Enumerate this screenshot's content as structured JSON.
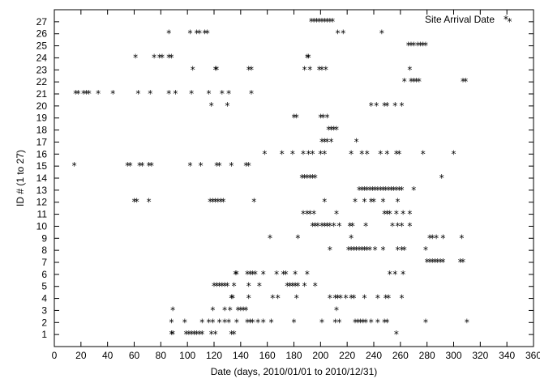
{
  "chart_data": {
    "type": "scatter",
    "xlabel": "Date (days, 2010/01/01 to 2010/12/31)",
    "ylabel": "ID # (1 to 27)",
    "xlim": [
      0,
      360
    ],
    "ylim": [
      0,
      28
    ],
    "xticks": [
      0,
      20,
      40,
      60,
      80,
      100,
      120,
      140,
      160,
      180,
      200,
      220,
      240,
      260,
      280,
      300,
      320,
      340,
      360
    ],
    "yticks": [
      1,
      2,
      3,
      4,
      5,
      6,
      7,
      8,
      9,
      10,
      11,
      12,
      13,
      14,
      15,
      16,
      17,
      18,
      19,
      20,
      21,
      22,
      23,
      24,
      25,
      26,
      27
    ],
    "grid": false,
    "legend_position": "top-right",
    "marker": "*",
    "series": [
      {
        "name": "Site Arrival Date",
        "color": "#000000",
        "points": [
          [
            88,
            1
          ],
          [
            89,
            1
          ],
          [
            99,
            1
          ],
          [
            101,
            1
          ],
          [
            103,
            1
          ],
          [
            105,
            1
          ],
          [
            107,
            1
          ],
          [
            109,
            1
          ],
          [
            111,
            1
          ],
          [
            118,
            1
          ],
          [
            121,
            1
          ],
          [
            133,
            1
          ],
          [
            135,
            1
          ],
          [
            257,
            1
          ],
          [
            88,
            2
          ],
          [
            98,
            2
          ],
          [
            111,
            2
          ],
          [
            116,
            2
          ],
          [
            119,
            2
          ],
          [
            124,
            2
          ],
          [
            128,
            2
          ],
          [
            131,
            2
          ],
          [
            137,
            2
          ],
          [
            145,
            2
          ],
          [
            147,
            2
          ],
          [
            149,
            2
          ],
          [
            153,
            2
          ],
          [
            157,
            2
          ],
          [
            163,
            2
          ],
          [
            180,
            2
          ],
          [
            201,
            2
          ],
          [
            211,
            2
          ],
          [
            214,
            2
          ],
          [
            226,
            2
          ],
          [
            228,
            2
          ],
          [
            230,
            2
          ],
          [
            232,
            2
          ],
          [
            234,
            2
          ],
          [
            238,
            2
          ],
          [
            243,
            2
          ],
          [
            248,
            2
          ],
          [
            250,
            2
          ],
          [
            279,
            2
          ],
          [
            310,
            2
          ],
          [
            89,
            3
          ],
          [
            119,
            3
          ],
          [
            128,
            3
          ],
          [
            132,
            3
          ],
          [
            138,
            3
          ],
          [
            140,
            3
          ],
          [
            142,
            3
          ],
          [
            144,
            3
          ],
          [
            212,
            3
          ],
          [
            133,
            4
          ],
          [
            134,
            4
          ],
          [
            146,
            4
          ],
          [
            164,
            4
          ],
          [
            168,
            4
          ],
          [
            182,
            4
          ],
          [
            207,
            4
          ],
          [
            211,
            4
          ],
          [
            213,
            4
          ],
          [
            215,
            4
          ],
          [
            219,
            4
          ],
          [
            223,
            4
          ],
          [
            225,
            4
          ],
          [
            233,
            4
          ],
          [
            243,
            4
          ],
          [
            249,
            4
          ],
          [
            251,
            4
          ],
          [
            261,
            4
          ],
          [
            120,
            5
          ],
          [
            122,
            5
          ],
          [
            124,
            5
          ],
          [
            126,
            5
          ],
          [
            128,
            5
          ],
          [
            130,
            5
          ],
          [
            135,
            5
          ],
          [
            146,
            5
          ],
          [
            154,
            5
          ],
          [
            175,
            5
          ],
          [
            177,
            5
          ],
          [
            179,
            5
          ],
          [
            181,
            5
          ],
          [
            183,
            5
          ],
          [
            188,
            5
          ],
          [
            196,
            5
          ],
          [
            136,
            6
          ],
          [
            137,
            6
          ],
          [
            145,
            6
          ],
          [
            147,
            6
          ],
          [
            149,
            6
          ],
          [
            151,
            6
          ],
          [
            157,
            6
          ],
          [
            167,
            6
          ],
          [
            172,
            6
          ],
          [
            174,
            6
          ],
          [
            181,
            6
          ],
          [
            190,
            6
          ],
          [
            252,
            6
          ],
          [
            256,
            6
          ],
          [
            262,
            6
          ],
          [
            280,
            7
          ],
          [
            282,
            7
          ],
          [
            284,
            7
          ],
          [
            286,
            7
          ],
          [
            288,
            7
          ],
          [
            290,
            7
          ],
          [
            292,
            7
          ],
          [
            305,
            7
          ],
          [
            307,
            7
          ],
          [
            207,
            8
          ],
          [
            221,
            8
          ],
          [
            223,
            8
          ],
          [
            225,
            8
          ],
          [
            227,
            8
          ],
          [
            229,
            8
          ],
          [
            231,
            8
          ],
          [
            233,
            8
          ],
          [
            235,
            8
          ],
          [
            237,
            8
          ],
          [
            241,
            8
          ],
          [
            247,
            8
          ],
          [
            258,
            8
          ],
          [
            261,
            8
          ],
          [
            263,
            8
          ],
          [
            279,
            8
          ],
          [
            162,
            9
          ],
          [
            183,
            9
          ],
          [
            223,
            9
          ],
          [
            282,
            9
          ],
          [
            284,
            9
          ],
          [
            287,
            9
          ],
          [
            292,
            9
          ],
          [
            306,
            9
          ],
          [
            194,
            10
          ],
          [
            196,
            10
          ],
          [
            198,
            10
          ],
          [
            201,
            10
          ],
          [
            203,
            10
          ],
          [
            205,
            10
          ],
          [
            207,
            10
          ],
          [
            210,
            10
          ],
          [
            214,
            10
          ],
          [
            222,
            10
          ],
          [
            224,
            10
          ],
          [
            234,
            10
          ],
          [
            254,
            10
          ],
          [
            258,
            10
          ],
          [
            261,
            10
          ],
          [
            267,
            10
          ],
          [
            187,
            11
          ],
          [
            190,
            11
          ],
          [
            192,
            11
          ],
          [
            195,
            11
          ],
          [
            212,
            11
          ],
          [
            248,
            11
          ],
          [
            250,
            11
          ],
          [
            252,
            11
          ],
          [
            257,
            11
          ],
          [
            262,
            11
          ],
          [
            267,
            11
          ],
          [
            60,
            12
          ],
          [
            62,
            12
          ],
          [
            71,
            12
          ],
          [
            117,
            12
          ],
          [
            119,
            12
          ],
          [
            121,
            12
          ],
          [
            123,
            12
          ],
          [
            125,
            12
          ],
          [
            127,
            12
          ],
          [
            150,
            12
          ],
          [
            203,
            12
          ],
          [
            226,
            12
          ],
          [
            233,
            12
          ],
          [
            238,
            12
          ],
          [
            240,
            12
          ],
          [
            247,
            12
          ],
          [
            258,
            12
          ],
          [
            229,
            13
          ],
          [
            231,
            13
          ],
          [
            233,
            13
          ],
          [
            235,
            13
          ],
          [
            237,
            13
          ],
          [
            239,
            13
          ],
          [
            241,
            13
          ],
          [
            243,
            13
          ],
          [
            245,
            13
          ],
          [
            247,
            13
          ],
          [
            249,
            13
          ],
          [
            251,
            13
          ],
          [
            253,
            13
          ],
          [
            255,
            13
          ],
          [
            257,
            13
          ],
          [
            259,
            13
          ],
          [
            261,
            13
          ],
          [
            270,
            13
          ],
          [
            186,
            14
          ],
          [
            188,
            14
          ],
          [
            190,
            14
          ],
          [
            192,
            14
          ],
          [
            194,
            14
          ],
          [
            196,
            14
          ],
          [
            291,
            14
          ],
          [
            15,
            15
          ],
          [
            55,
            15
          ],
          [
            57,
            15
          ],
          [
            64,
            15
          ],
          [
            66,
            15
          ],
          [
            71,
            15
          ],
          [
            73,
            15
          ],
          [
            102,
            15
          ],
          [
            110,
            15
          ],
          [
            122,
            15
          ],
          [
            124,
            15
          ],
          [
            133,
            15
          ],
          [
            144,
            15
          ],
          [
            146,
            15
          ],
          [
            158,
            16
          ],
          [
            171,
            16
          ],
          [
            179,
            16
          ],
          [
            187,
            16
          ],
          [
            191,
            16
          ],
          [
            194,
            16
          ],
          [
            200,
            16
          ],
          [
            203,
            16
          ],
          [
            223,
            16
          ],
          [
            231,
            16
          ],
          [
            235,
            16
          ],
          [
            245,
            16
          ],
          [
            250,
            16
          ],
          [
            257,
            16
          ],
          [
            259,
            16
          ],
          [
            277,
            16
          ],
          [
            300,
            16
          ],
          [
            201,
            17
          ],
          [
            203,
            17
          ],
          [
            205,
            17
          ],
          [
            208,
            17
          ],
          [
            227,
            17
          ],
          [
            206,
            18
          ],
          [
            208,
            18
          ],
          [
            210,
            18
          ],
          [
            212,
            18
          ],
          [
            180,
            19
          ],
          [
            182,
            19
          ],
          [
            200,
            19
          ],
          [
            202,
            19
          ],
          [
            205,
            19
          ],
          [
            118,
            20
          ],
          [
            130,
            20
          ],
          [
            238,
            20
          ],
          [
            242,
            20
          ],
          [
            248,
            20
          ],
          [
            250,
            20
          ],
          [
            256,
            20
          ],
          [
            261,
            20
          ],
          [
            16,
            21
          ],
          [
            18,
            21
          ],
          [
            22,
            21
          ],
          [
            24,
            21
          ],
          [
            26,
            21
          ],
          [
            33,
            21
          ],
          [
            44,
            21
          ],
          [
            63,
            21
          ],
          [
            72,
            21
          ],
          [
            86,
            21
          ],
          [
            91,
            21
          ],
          [
            103,
            21
          ],
          [
            116,
            21
          ],
          [
            126,
            21
          ],
          [
            131,
            21
          ],
          [
            148,
            21
          ],
          [
            263,
            22
          ],
          [
            268,
            22
          ],
          [
            270,
            22
          ],
          [
            272,
            22
          ],
          [
            274,
            22
          ],
          [
            307,
            22
          ],
          [
            309,
            22
          ],
          [
            104,
            23
          ],
          [
            121,
            23
          ],
          [
            122,
            23
          ],
          [
            146,
            23
          ],
          [
            148,
            23
          ],
          [
            188,
            23
          ],
          [
            192,
            23
          ],
          [
            199,
            23
          ],
          [
            201,
            23
          ],
          [
            204,
            23
          ],
          [
            267,
            23
          ],
          [
            61,
            24
          ],
          [
            75,
            24
          ],
          [
            79,
            24
          ],
          [
            81,
            24
          ],
          [
            86,
            24
          ],
          [
            88,
            24
          ],
          [
            190,
            24
          ],
          [
            191,
            24
          ],
          [
            266,
            25
          ],
          [
            268,
            25
          ],
          [
            270,
            25
          ],
          [
            273,
            25
          ],
          [
            275,
            25
          ],
          [
            277,
            25
          ],
          [
            279,
            25
          ],
          [
            86,
            26
          ],
          [
            102,
            26
          ],
          [
            107,
            26
          ],
          [
            109,
            26
          ],
          [
            113,
            26
          ],
          [
            115,
            26
          ],
          [
            213,
            26
          ],
          [
            217,
            26
          ],
          [
            246,
            26
          ],
          [
            193,
            27
          ],
          [
            195,
            27
          ],
          [
            197,
            27
          ],
          [
            199,
            27
          ],
          [
            201,
            27
          ],
          [
            203,
            27
          ],
          [
            205,
            27
          ],
          [
            207,
            27
          ],
          [
            209,
            27
          ],
          [
            342,
            27
          ]
        ]
      }
    ]
  }
}
